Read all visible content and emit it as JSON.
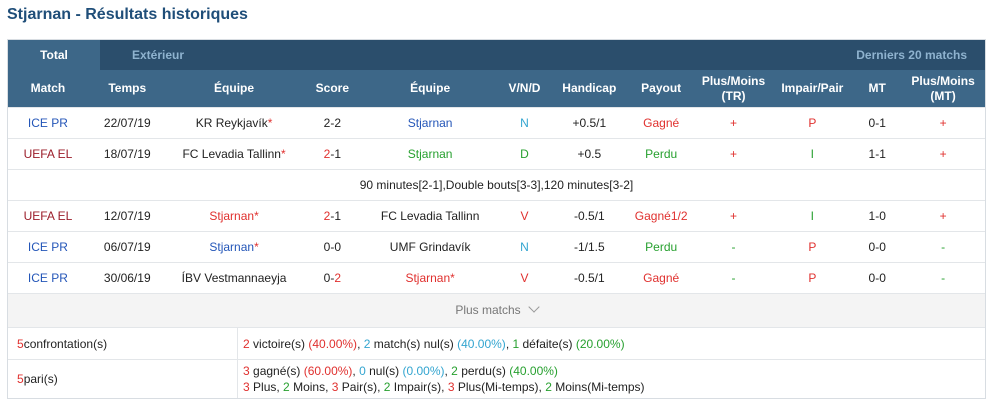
{
  "page": {
    "title": "Stjarnan - Résultats historiques"
  },
  "tabs": {
    "total": "Total",
    "exterieur": "Extérieur",
    "derniers": "Derniers 20 matchs"
  },
  "headers": {
    "match": "Match",
    "temps": "Temps",
    "equipe1": "Équipe",
    "score": "Score",
    "equipe2": "Équipe",
    "vnd": "V/N/D",
    "handicap": "Handicap",
    "payout": "Payout",
    "plus_moins_tr_1": "Plus/Moins",
    "plus_moins_tr_2": "(TR)",
    "impair_pair": "Impair/Pair",
    "mt": "MT",
    "plus_moins_mt_1": "Plus/Moins",
    "plus_moins_mt_2": "(MT)"
  },
  "rows": [
    {
      "match": "ICE PR",
      "match_color": "#2456b8",
      "date": "22/07/19",
      "home": "KR Reykjavík",
      "home_star": "*",
      "home_color": "#222",
      "score_l": "2",
      "score_sep": "-",
      "score_r": "2",
      "score_l_color": "#222",
      "score_r_color": "#222",
      "away": "Stjarnan",
      "away_star": "",
      "away_color": "#2456b8",
      "vnd": "N",
      "vnd_color": "#33a5d0",
      "handicap": "+0.5/1",
      "payout": "Gagné",
      "payout_color": "#e0302e",
      "plus_moins": "+",
      "pm_color": "#e0302e",
      "impair_pair": "P",
      "ip_color": "#e0302e",
      "mt": "0-1",
      "plus_moins_mt": "+",
      "pmmt_color": "#e0302e"
    },
    {
      "match": "UEFA EL",
      "match_color": "#9b1d2a",
      "date": "18/07/19",
      "home": "FC Levadia Tallinn",
      "home_star": "*",
      "home_color": "#222",
      "score_l": "2",
      "score_sep": "-",
      "score_r": "1",
      "score_l_color": "#e0302e",
      "score_r_color": "#222",
      "away": "Stjarnan",
      "away_star": "",
      "away_color": "#27a02f",
      "vnd": "D",
      "vnd_color": "#27a02f",
      "handicap": "+0.5",
      "payout": "Perdu",
      "payout_color": "#27a02f",
      "plus_moins": "+",
      "pm_color": "#e0302e",
      "impair_pair": "I",
      "ip_color": "#27a02f",
      "mt": "1-1",
      "plus_moins_mt": "+",
      "pmmt_color": "#e0302e"
    },
    {
      "match": "UEFA EL",
      "match_color": "#9b1d2a",
      "date": "12/07/19",
      "home": "Stjarnan",
      "home_star": "*",
      "home_color": "#e0302e",
      "score_l": "2",
      "score_sep": "-",
      "score_r": "1",
      "score_l_color": "#e0302e",
      "score_r_color": "#222",
      "away": "FC Levadia Tallinn",
      "away_star": "",
      "away_color": "#222",
      "vnd": "V",
      "vnd_color": "#e0302e",
      "handicap": "-0.5/1",
      "payout": "Gagné1/2",
      "payout_color": "#e0302e",
      "plus_moins": "+",
      "pm_color": "#e0302e",
      "impair_pair": "I",
      "ip_color": "#27a02f",
      "mt": "1-0",
      "plus_moins_mt": "+",
      "pmmt_color": "#e0302e"
    },
    {
      "match": "ICE PR",
      "match_color": "#2456b8",
      "date": "06/07/19",
      "home": "Stjarnan",
      "home_star": "*",
      "home_color": "#2456b8",
      "score_l": "0",
      "score_sep": "-",
      "score_r": "0",
      "score_l_color": "#222",
      "score_r_color": "#222",
      "away": "UMF Grindavík",
      "away_star": "",
      "away_color": "#222",
      "vnd": "N",
      "vnd_color": "#33a5d0",
      "handicap": "-1/1.5",
      "payout": "Perdu",
      "payout_color": "#27a02f",
      "plus_moins": "-",
      "pm_color": "#27a02f",
      "impair_pair": "P",
      "ip_color": "#e0302e",
      "mt": "0-0",
      "plus_moins_mt": "-",
      "pmmt_color": "#27a02f"
    },
    {
      "match": "ICE PR",
      "match_color": "#2456b8",
      "date": "30/06/19",
      "home": "ÍBV Vestmannaeyja",
      "home_star": "",
      "home_color": "#222",
      "score_l": "0",
      "score_sep": "-",
      "score_r": "2",
      "score_l_color": "#222",
      "score_r_color": "#e0302e",
      "away": "Stjarnan",
      "away_star": "*",
      "away_color": "#e0302e",
      "vnd": "V",
      "vnd_color": "#e0302e",
      "handicap": "-0.5/1",
      "payout": "Gagné",
      "payout_color": "#e0302e",
      "plus_moins": "-",
      "pm_color": "#27a02f",
      "impair_pair": "P",
      "ip_color": "#e0302e",
      "mt": "0-0",
      "plus_moins_mt": "-",
      "pmmt_color": "#27a02f"
    }
  ],
  "note": "90 minutes[2-1],Double bouts[3-3],120 minutes[3-2]",
  "more": "Plus matchs",
  "summary": {
    "conf_count": "5",
    "conf_label": " confrontation(s)",
    "victoires_n": "2",
    "victoires_t": " victoire(s) ",
    "victoires_p": "(40.00%)",
    "nuls_sep": ", ",
    "nuls_n": "2",
    "nuls_t": " match(s) nul(s) ",
    "nuls_p": "(40.00%)",
    "def_sep": ", ",
    "def_n": "1",
    "def_t": " défaite(s) ",
    "def_p": "(20.00%)",
    "paris_count": "5",
    "paris_label": " pari(s)",
    "gagne_n": "3",
    "gagne_t": " gagné(s) ",
    "gagne_p": "(60.00%)",
    "nul_sep": ", ",
    "nul_n": "0",
    "nul_t": " nul(s) ",
    "nul_p": "(0.00%)",
    "perdu_sep": ", ",
    "perdu_n": "2",
    "perdu_t": " perdu(s) ",
    "perdu_p": "(40.00%)",
    "l3_a_n": "3",
    "l3_a_t": " Plus, ",
    "l3_b_n": "2",
    "l3_b_t": " Moins, ",
    "l3_c_n": "3",
    "l3_c_t": " Pair(s), ",
    "l3_d_n": "2",
    "l3_d_t": " Impair(s), ",
    "l3_e_n": "3",
    "l3_e_t": " Plus(Mi-temps), ",
    "l3_f_n": "2",
    "l3_f_t": " Moins(Mi-temps)"
  }
}
